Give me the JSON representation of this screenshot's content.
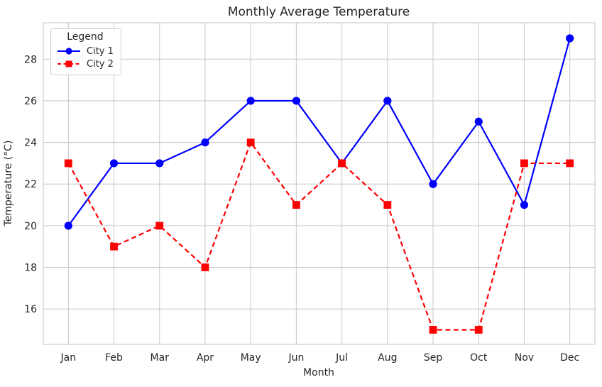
{
  "chart_data": {
    "type": "line",
    "title": "Monthly Average Temperature",
    "xlabel": "Month",
    "ylabel": "Temperature (°C)",
    "categories": [
      "Jan",
      "Feb",
      "Mar",
      "Apr",
      "May",
      "Jun",
      "Jul",
      "Aug",
      "Sep",
      "Oct",
      "Nov",
      "Dec"
    ],
    "series": [
      {
        "name": "City 1",
        "color": "#0000ff",
        "line_style": "solid",
        "marker": "circle",
        "values": [
          20,
          23,
          23,
          24,
          26,
          26,
          23,
          26,
          22,
          25,
          21,
          29
        ]
      },
      {
        "name": "City 2",
        "color": "#ff0000",
        "line_style": "dashed",
        "marker": "square",
        "values": [
          23,
          19,
          20,
          18,
          24,
          21,
          23,
          21,
          15,
          15,
          23,
          23
        ]
      }
    ],
    "yticks": [
      16,
      18,
      20,
      22,
      24,
      26,
      28
    ],
    "ylim": [
      14.3,
      29.75
    ],
    "grid": true,
    "grid_color": "#cccccc",
    "border_color": "#c2c2c2",
    "text_color": "#262626",
    "legend_title": "Legend",
    "legend_position": "upper left",
    "legend_entries": [
      "City 1",
      "City 2"
    ]
  }
}
